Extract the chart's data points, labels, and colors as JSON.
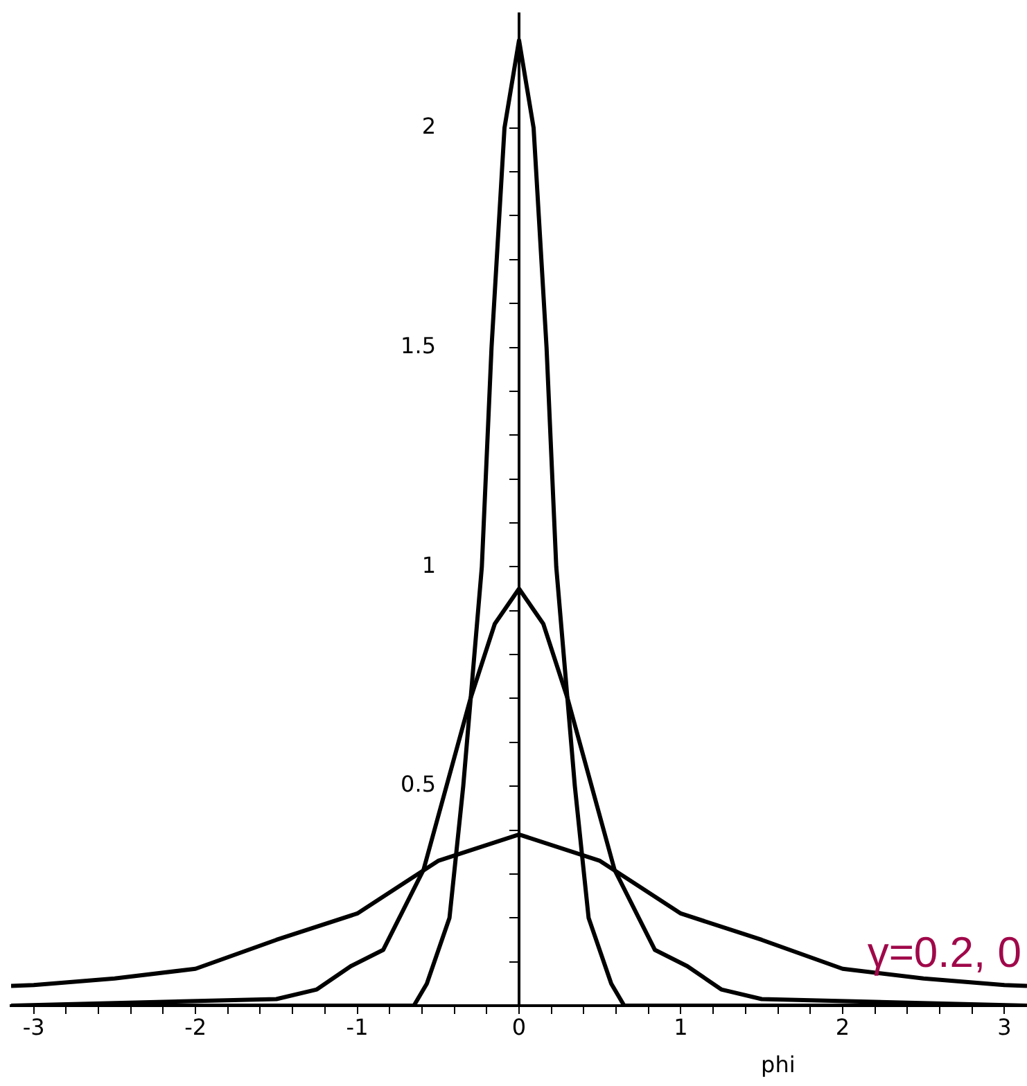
{
  "chart_data": {
    "type": "line",
    "xlabel": "phi",
    "annotations": [
      "γ=0.2, 0"
    ],
    "xlim": [
      -3.14,
      3.14
    ],
    "ylim": [
      0,
      2.26
    ],
    "xticks": [
      -3,
      {
        "value": -2.8,
        "label": null
      },
      {
        "value": -2.6,
        "label": null
      },
      {
        "value": -2.4,
        "label": null
      },
      {
        "value": -2.2,
        "label": null
      },
      -2,
      {
        "value": -1.8,
        "label": null
      },
      {
        "value": -1.6,
        "label": null
      },
      {
        "value": -1.4,
        "label": null
      },
      {
        "value": -1.2,
        "label": null
      },
      -1,
      {
        "value": -0.8,
        "label": null
      },
      {
        "value": -0.6,
        "label": null
      },
      {
        "value": -0.4,
        "label": null
      },
      {
        "value": -0.2,
        "label": null
      },
      0,
      {
        "value": 0.2,
        "label": null
      },
      {
        "value": 0.4,
        "label": null
      },
      {
        "value": 0.6,
        "label": null
      },
      {
        "value": 0.8,
        "label": null
      },
      1,
      {
        "value": 1.2,
        "label": null
      },
      {
        "value": 1.4,
        "label": null
      },
      {
        "value": 1.6,
        "label": null
      },
      {
        "value": 1.8,
        "label": null
      },
      2,
      {
        "value": 2.2,
        "label": null
      },
      {
        "value": 2.4,
        "label": null
      },
      {
        "value": 2.6,
        "label": null
      },
      {
        "value": 2.8,
        "label": null
      },
      3
    ],
    "yticks": [
      {
        "value": 0.1,
        "label": null
      },
      {
        "value": 0.2,
        "label": null
      },
      {
        "value": 0.3,
        "label": null
      },
      {
        "value": 0.4,
        "label": null
      },
      0.5,
      {
        "value": 0.6,
        "label": null
      },
      {
        "value": 0.7,
        "label": null
      },
      {
        "value": 0.8,
        "label": null
      },
      {
        "value": 0.9,
        "label": null
      },
      1,
      {
        "value": 1.1,
        "label": null
      },
      {
        "value": 1.2,
        "label": null
      },
      {
        "value": 1.3,
        "label": null
      },
      {
        "value": 1.4,
        "label": null
      },
      1.5,
      {
        "value": 1.6,
        "label": null
      },
      {
        "value": 1.7,
        "label": null
      },
      {
        "value": 1.8,
        "label": null
      },
      {
        "value": 1.9,
        "label": null
      },
      2
    ],
    "legend": false,
    "series": [
      {
        "color": "#000000",
        "x": [
          -3.14,
          -0.65,
          -0.57,
          -0.43,
          -0.345,
          -0.23,
          -0.17,
          -0.09,
          0,
          0.09,
          0.17,
          0.23,
          0.345,
          0.43,
          0.57,
          0.65,
          3.14
        ],
        "values": [
          0,
          0,
          0.05,
          0.2,
          0.5,
          1,
          1.5,
          2,
          2.2,
          2,
          1.5,
          1,
          0.5,
          0.2,
          0.05,
          0,
          0
        ]
      },
      {
        "color": "#000000",
        "x": [
          -3.14,
          -1.5,
          -1.25,
          -1.04,
          -0.84,
          -0.59,
          -0.3,
          -0.15,
          0,
          0.15,
          0.3,
          0.59,
          0.84,
          1.04,
          1.25,
          1.5,
          3.14
        ],
        "values": [
          0,
          0.015,
          0.037,
          0.09,
          0.127,
          0.31,
          0.7,
          0.87,
          0.95,
          0.87,
          0.7,
          0.31,
          0.127,
          0.09,
          0.037,
          0.015,
          0
        ]
      },
      {
        "color": "#000000",
        "x": [
          -3.14,
          -3,
          -2.5,
          -2,
          -1.5,
          -1,
          -0.5,
          0,
          0.5,
          1,
          1.5,
          2,
          2.5,
          3,
          3.14
        ],
        "values": [
          0.045,
          0.047,
          0.062,
          0.084,
          0.15,
          0.21,
          0.33,
          0.39,
          0.33,
          0.21,
          0.15,
          0.084,
          0.062,
          0.047,
          0.045
        ]
      }
    ]
  }
}
